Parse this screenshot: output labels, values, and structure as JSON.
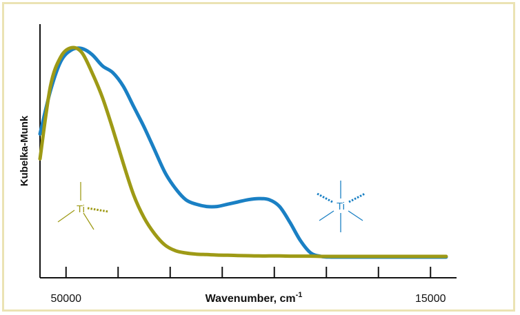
{
  "chart_data": {
    "type": "line",
    "xlabel": "Wavenumber, cm",
    "xlabel_sup": "-1",
    "ylabel": "Kubelka-Munk",
    "x_reversed": true,
    "xlim": [
      52500,
      12500
    ],
    "ylim": [
      0,
      1
    ],
    "grid": false,
    "ticks": [
      50000,
      45000,
      40000,
      35000,
      30000,
      25000,
      20000,
      15000
    ],
    "tick_labels": [
      {
        "value": 50000,
        "label": "50000"
      },
      {
        "value": 15000,
        "label": "15000"
      }
    ],
    "series": [
      {
        "color": "#1a80c4",
        "x": [
          52500,
          51500,
          50500,
          49500,
          48500,
          47500,
          46500,
          45500,
          44500,
          43500,
          42500,
          41500,
          40500,
          39500,
          38500,
          37500,
          36500,
          35500,
          34500,
          33500,
          32500,
          31500,
          30500,
          29500,
          28500,
          27500,
          26500,
          25500,
          24500,
          23500,
          22500,
          21500,
          20500,
          19500,
          18500,
          17500,
          16500,
          15500,
          14500,
          13500
        ],
        "y": [
          0.61,
          0.8,
          0.93,
          0.98,
          0.987,
          0.96,
          0.91,
          0.88,
          0.82,
          0.73,
          0.64,
          0.54,
          0.44,
          0.37,
          0.32,
          0.3,
          0.29,
          0.29,
          0.3,
          0.31,
          0.32,
          0.325,
          0.32,
          0.29,
          0.22,
          0.14,
          0.085,
          0.07,
          0.067,
          0.067,
          0.067,
          0.067,
          0.067,
          0.067,
          0.067,
          0.067,
          0.067,
          0.067,
          0.067,
          0.067
        ]
      },
      {
        "color": "#9e9a16",
        "x": [
          52500,
          51500,
          50500,
          49500,
          48500,
          47500,
          46500,
          45500,
          44500,
          43500,
          42500,
          41500,
          40500,
          39500,
          38500,
          37500,
          36500,
          35500,
          34500,
          33500,
          32500,
          31500,
          30500,
          29500,
          28500,
          27500,
          26500,
          25500,
          24500,
          23500,
          22500,
          21500,
          20500,
          19500,
          18500,
          17500,
          16500,
          15500,
          14500,
          13500
        ],
        "y": [
          0.5,
          0.82,
          0.95,
          0.99,
          0.97,
          0.88,
          0.77,
          0.63,
          0.48,
          0.34,
          0.24,
          0.17,
          0.12,
          0.095,
          0.085,
          0.08,
          0.078,
          0.076,
          0.075,
          0.074,
          0.073,
          0.072,
          0.072,
          0.072,
          0.071,
          0.071,
          0.071,
          0.07,
          0.07,
          0.07,
          0.07,
          0.07,
          0.07,
          0.07,
          0.07,
          0.07,
          0.07,
          0.07,
          0.07,
          0.07
        ]
      }
    ],
    "annotations": [
      {
        "text": "Ti",
        "color": "#9e9a16"
      },
      {
        "text": "Ti",
        "color": "#1a80c4"
      }
    ]
  }
}
